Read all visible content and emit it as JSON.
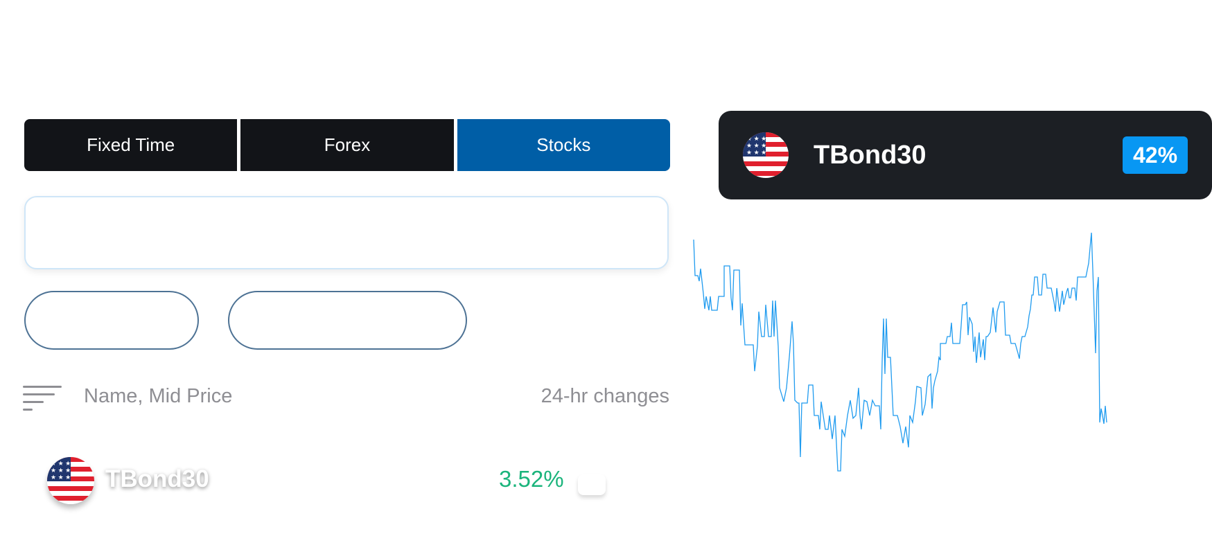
{
  "tabs": [
    {
      "label": "Fixed Time",
      "active": false
    },
    {
      "label": "Forex",
      "active": false
    },
    {
      "label": "Stocks",
      "active": true
    }
  ],
  "list_header": {
    "sort_icon": "sort-lines-icon",
    "name_column": "Name, Mid Price",
    "change_column": "24-hr changes"
  },
  "list_rows": [
    {
      "flag_icon": "us-flag-icon",
      "name": "TBond30",
      "change": "3.52%"
    }
  ],
  "instrument_card": {
    "flag_icon": "us-flag-icon",
    "title": "TBond30",
    "percent": "42%"
  },
  "colors": {
    "tab_bg": "#121418",
    "tab_active": "#005ea6",
    "card_bg": "#1c1f24",
    "badge": "#0897f3",
    "positive": "#1bb47c",
    "chart_line": "#1f9bef"
  }
}
